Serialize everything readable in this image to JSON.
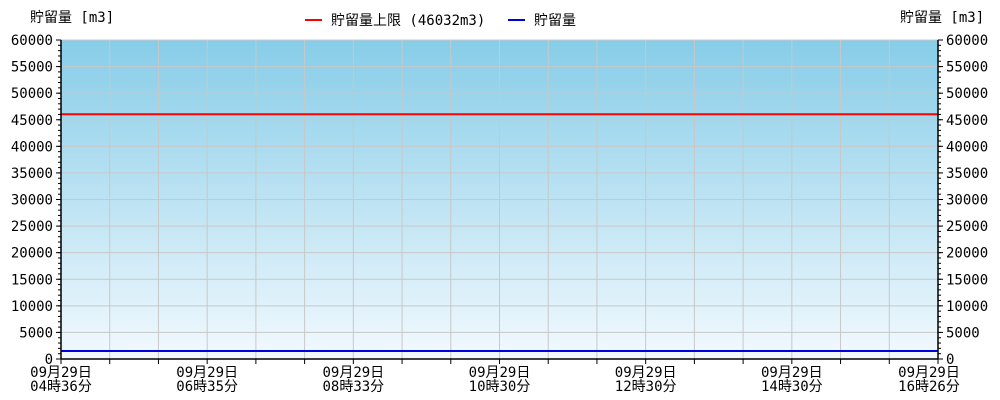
{
  "chart_data": {
    "type": "line",
    "ylabel_left": "貯留量 [m3]",
    "ylabel_right": "貯留量 [m3]",
    "ylim": [
      0,
      60000
    ],
    "yticks": [
      0,
      5000,
      10000,
      15000,
      20000,
      25000,
      30000,
      35000,
      40000,
      45000,
      50000,
      55000,
      60000
    ],
    "xtick_labels": [
      [
        "09月29日",
        "04時36分"
      ],
      [
        "09月29日",
        "06時35分"
      ],
      [
        "09月29日",
        "08時33分"
      ],
      [
        "09月29日",
        "10時30分"
      ],
      [
        "09月29日",
        "12時30分"
      ],
      [
        "09月29日",
        "14時30分"
      ],
      [
        "09月29日",
        "16時26分"
      ]
    ],
    "grid": true,
    "legend_position": "top-center",
    "series": [
      {
        "name": "貯留量上限 (46032m3)",
        "color": "#ff0000",
        "values": [
          46032,
          46032
        ]
      },
      {
        "name": "貯留量",
        "color": "#0000dd",
        "values": [
          1500,
          1500
        ]
      }
    ],
    "background_gradient": [
      "#87cde8",
      "#f2f9fe"
    ]
  }
}
